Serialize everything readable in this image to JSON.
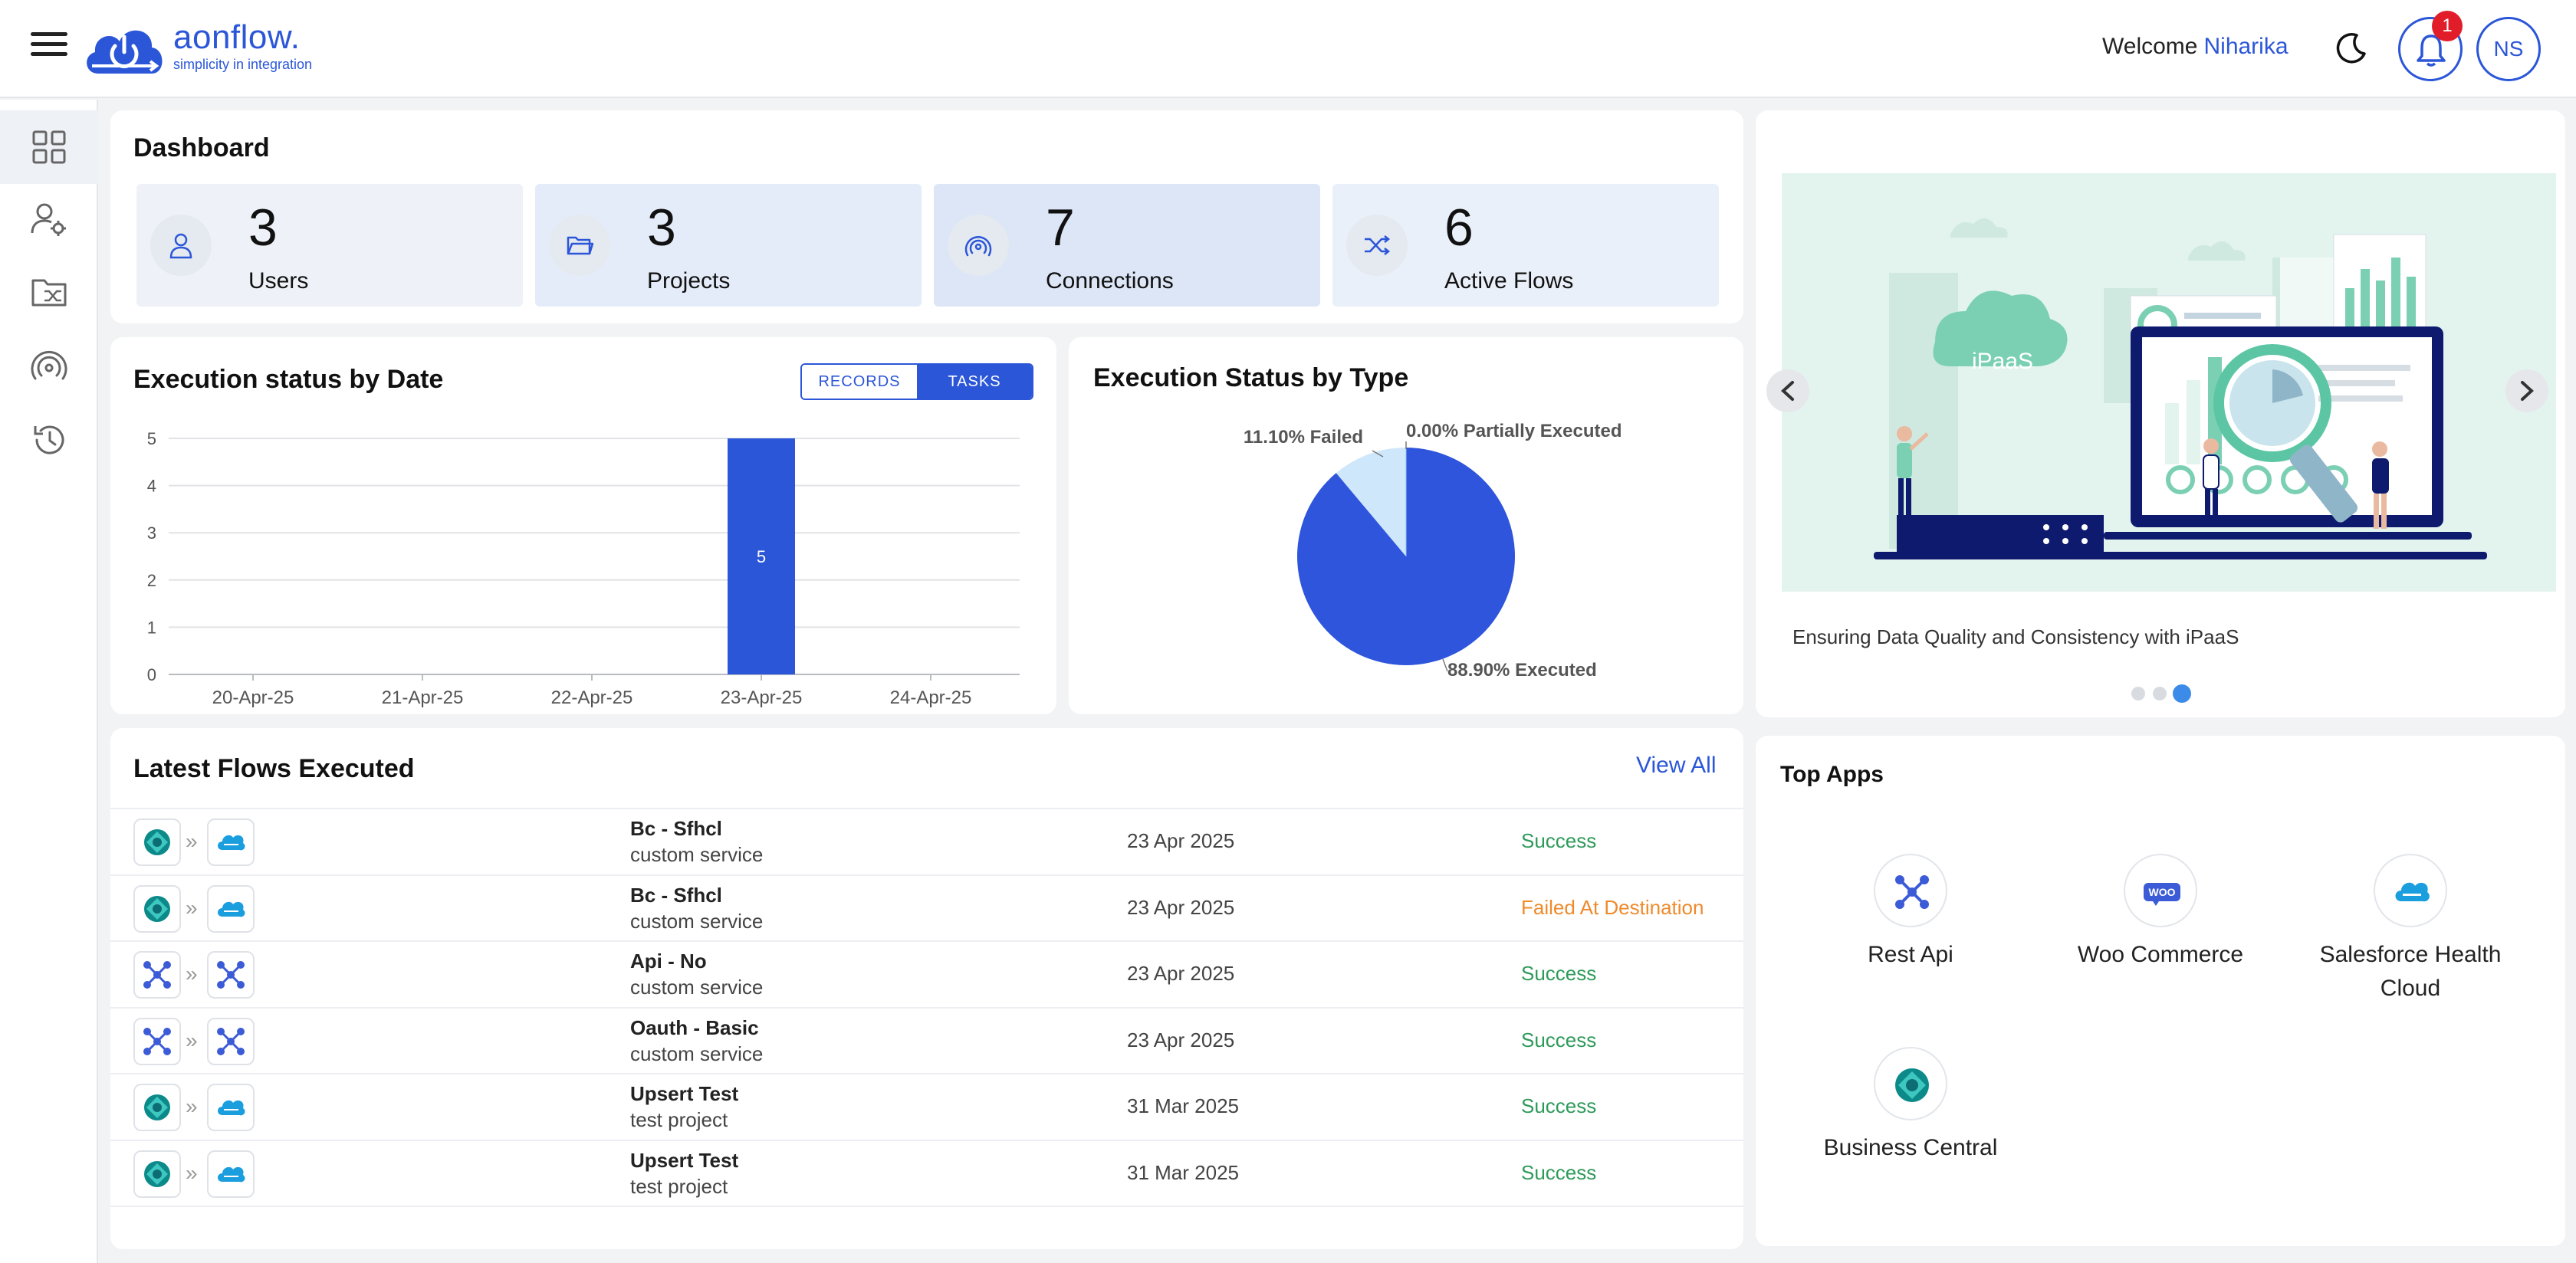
{
  "brand": {
    "name": "aonflow.",
    "tagline": "simplicity in integration"
  },
  "header": {
    "welcome": "Welcome",
    "user_name": "Niharika",
    "notifications_count": "1",
    "avatar_initials": "NS"
  },
  "sidebar": {
    "items": [
      "dashboard-icon",
      "user-settings-icon",
      "folder-flows-icon",
      "connections-icon",
      "history-icon"
    ],
    "active": 0
  },
  "dashboard": {
    "title": "Dashboard",
    "stats": [
      {
        "value": "3",
        "label": "Users",
        "icon": "user-icon"
      },
      {
        "value": "3",
        "label": "Projects",
        "icon": "folder-icon"
      },
      {
        "value": "7",
        "label": "Connections",
        "icon": "fingerprint-icon"
      },
      {
        "value": "6",
        "label": "Active Flows",
        "icon": "shuffle-icon"
      }
    ]
  },
  "exec_by_date": {
    "title": "Execution status by Date",
    "toggle": {
      "records": "RECORDS",
      "tasks": "TASKS",
      "active": "TASKS"
    },
    "y_ticks": [
      "0",
      "1",
      "2",
      "3",
      "4",
      "5"
    ],
    "bar_label": "5"
  },
  "exec_by_type": {
    "title": "Execution Status by Type"
  },
  "chart_data": [
    {
      "type": "bar",
      "title": "Execution status by Date",
      "categories": [
        "20-Apr-25",
        "21-Apr-25",
        "22-Apr-25",
        "23-Apr-25",
        "24-Apr-25"
      ],
      "values": [
        0,
        0,
        0,
        5,
        0
      ],
      "ylim": [
        0,
        5
      ],
      "grid": true,
      "color": "#2b56d8"
    },
    {
      "type": "pie",
      "title": "Execution Status by Type",
      "slices": [
        {
          "label": "Executed",
          "value": 88.9,
          "text": "88.90% Executed",
          "color": "#2e55dc"
        },
        {
          "label": "Failed",
          "value": 11.1,
          "text": "11.10% Failed",
          "color": "#cfe7fb"
        },
        {
          "label": "Partially Executed",
          "value": 0.0,
          "text": "0.00% Partially Executed",
          "color": "#8ec3f0"
        }
      ]
    }
  ],
  "latest_flows": {
    "title": "Latest Flows Executed",
    "view_all": "View All",
    "rows": [
      {
        "name": "Bc - Sfhcl",
        "project": "custom service",
        "date": "23 Apr 2025",
        "status": "Success",
        "status_type": "ok",
        "from": "business-central-icon",
        "to": "salesforce-icon"
      },
      {
        "name": "Bc - Sfhcl",
        "project": "custom service",
        "date": "23 Apr 2025",
        "status": "Failed At Destination",
        "status_type": "fail",
        "from": "business-central-icon",
        "to": "salesforce-icon"
      },
      {
        "name": "Api - No",
        "project": "custom service",
        "date": "23 Apr 2025",
        "status": "Success",
        "status_type": "ok",
        "from": "rest-api-icon",
        "to": "rest-api-icon"
      },
      {
        "name": "Oauth - Basic",
        "project": "custom service",
        "date": "23 Apr 2025",
        "status": "Success",
        "status_type": "ok",
        "from": "rest-api-icon",
        "to": "rest-api-icon"
      },
      {
        "name": "Upsert Test",
        "project": "test project",
        "date": "31 Mar 2025",
        "status": "Success",
        "status_type": "ok",
        "from": "business-central-icon",
        "to": "salesforce-icon"
      },
      {
        "name": "Upsert Test",
        "project": "test project",
        "date": "31 Mar 2025",
        "status": "Success",
        "status_type": "ok",
        "from": "business-central-icon",
        "to": "salesforce-icon"
      }
    ]
  },
  "carousel": {
    "caption": "Ensuring Data Quality and Consistency with iPaaS",
    "image_text": "iPaaS",
    "dots": 3,
    "active_dot": 2
  },
  "top_apps": {
    "title": "Top Apps",
    "apps": [
      {
        "name": "Rest Api",
        "icon": "rest-api-icon"
      },
      {
        "name": "Woo Commerce",
        "icon": "woo-commerce-icon",
        "icon_text": "WOO"
      },
      {
        "name": "Salesforce Health Cloud",
        "icon": "salesforce-icon"
      },
      {
        "name": "Business Central",
        "icon": "business-central-icon"
      }
    ]
  },
  "colors": {
    "primary": "#2b56d8",
    "success": "#2e9a5a",
    "warning": "#ef8a2b",
    "badge": "#e11d2a"
  }
}
